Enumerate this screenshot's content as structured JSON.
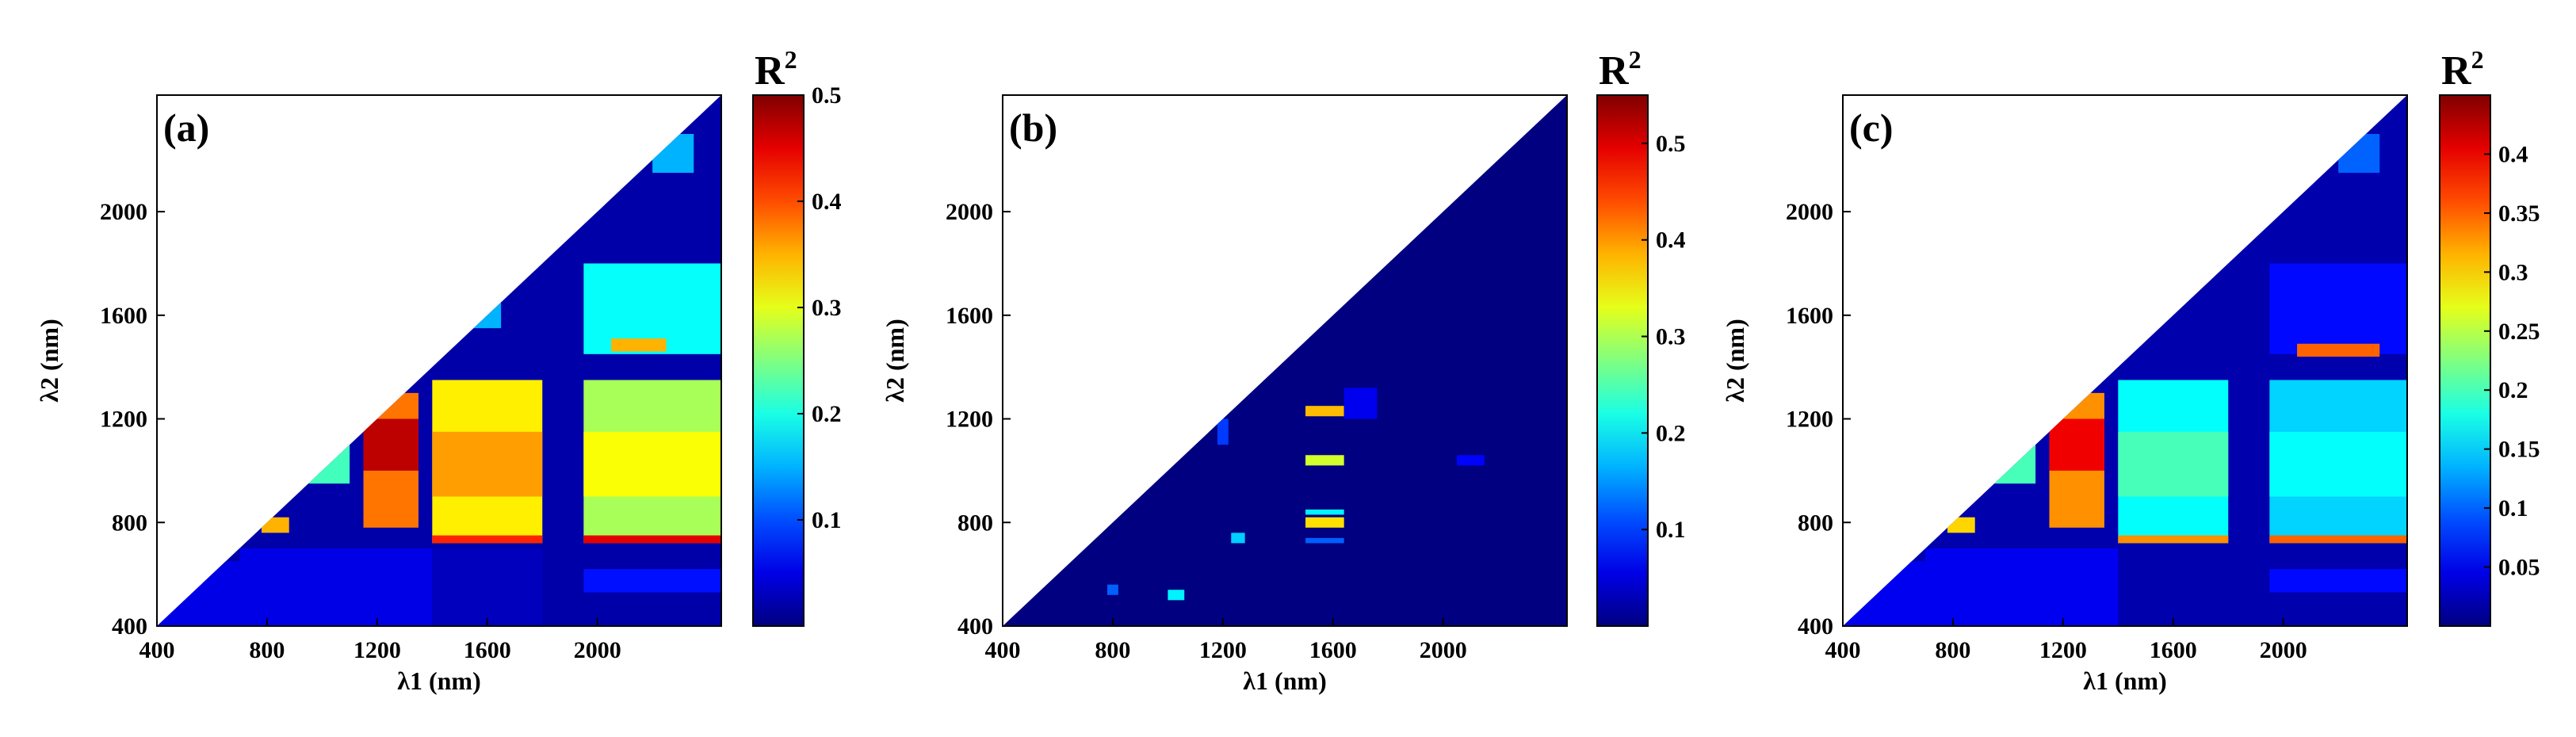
{
  "figure": {
    "description_free": true
  },
  "chart_data": [
    {
      "type": "heatmap",
      "panel_label": "(a)",
      "xlabel": "λ1 (nm)",
      "ylabel": "λ2 (nm)",
      "xlim": [
        400,
        2450
      ],
      "ylim": [
        400,
        2450
      ],
      "x_ticks": [
        400,
        800,
        1200,
        1600,
        2000
      ],
      "y_ticks": [
        400,
        800,
        1200,
        1600,
        2000
      ],
      "colorbar": {
        "title": "R",
        "title_sup": "2",
        "min": 0,
        "max": 0.5,
        "ticks": [
          0.1,
          0.2,
          0.3,
          0.4,
          0.5
        ]
      },
      "background_value": 0.02,
      "regions": [
        {
          "x": [
            400,
            700
          ],
          "y": [
            400,
            650
          ],
          "value": 0.05
        },
        {
          "x": [
            700,
            1400
          ],
          "y": [
            400,
            700
          ],
          "value": 0.05
        },
        {
          "x": [
            1400,
            1800
          ],
          "y": [
            400,
            700
          ],
          "value": 0.03
        },
        {
          "x": [
            1950,
            2450
          ],
          "y": [
            530,
            620
          ],
          "value": 0.07
        },
        {
          "x": [
            1400,
            1800
          ],
          "y": [
            720,
            1350
          ],
          "value": 0.32
        },
        {
          "x": [
            1400,
            1800
          ],
          "y": [
            900,
            1150
          ],
          "value": 0.36
        },
        {
          "x": [
            1400,
            1800
          ],
          "y": [
            720,
            750
          ],
          "value": 0.42
        },
        {
          "x": [
            1950,
            2450
          ],
          "y": [
            720,
            1350
          ],
          "value": 0.27
        },
        {
          "x": [
            1950,
            2450
          ],
          "y": [
            900,
            1150
          ],
          "value": 0.31
        },
        {
          "x": [
            1950,
            2450
          ],
          "y": [
            720,
            750
          ],
          "value": 0.45
        },
        {
          "x": [
            1150,
            1350
          ],
          "y": [
            780,
            1300
          ],
          "value": 0.38
        },
        {
          "x": [
            1150,
            1350
          ],
          "y": [
            1000,
            1200
          ],
          "value": 0.47
        },
        {
          "x": [
            1950,
            2450
          ],
          "y": [
            1450,
            1800
          ],
          "value": 0.19
        },
        {
          "x": [
            2050,
            2250
          ],
          "y": [
            1460,
            1510
          ],
          "value": 0.35
        },
        {
          "x": [
            1500,
            1650
          ],
          "y": [
            1550,
            1700
          ],
          "value": 0.15
        },
        {
          "x": [
            950,
            1100
          ],
          "y": [
            950,
            1100
          ],
          "value": 0.22
        },
        {
          "x": [
            780,
            880
          ],
          "y": [
            760,
            820
          ],
          "value": 0.35
        },
        {
          "x": [
            2200,
            2350
          ],
          "y": [
            2150,
            2300
          ],
          "value": 0.15
        }
      ]
    },
    {
      "type": "heatmap",
      "panel_label": "(b)",
      "xlabel": "λ1 (nm)",
      "ylabel": "λ2 (nm)",
      "xlim": [
        400,
        2450
      ],
      "ylim": [
        400,
        2450
      ],
      "x_ticks": [
        400,
        800,
        1200,
        1600,
        2000
      ],
      "y_ticks": [
        400,
        800,
        1200,
        1600,
        2000
      ],
      "colorbar": {
        "title": "R",
        "title_sup": "2",
        "min": 0,
        "max": 0.55,
        "ticks": [
          0.1,
          0.2,
          0.3,
          0.4,
          0.5
        ]
      },
      "background_value": 0.0,
      "regions": [
        {
          "x": [
            1500,
            1640
          ],
          "y": [
            1210,
            1250
          ],
          "value": 0.38
        },
        {
          "x": [
            1500,
            1640
          ],
          "y": [
            1020,
            1060
          ],
          "value": 0.32
        },
        {
          "x": [
            1500,
            1640
          ],
          "y": [
            780,
            820
          ],
          "value": 0.36
        },
        {
          "x": [
            1500,
            1640
          ],
          "y": [
            830,
            850
          ],
          "value": 0.2
        },
        {
          "x": [
            1500,
            1640
          ],
          "y": [
            720,
            740
          ],
          "value": 0.12
        },
        {
          "x": [
            1000,
            1060
          ],
          "y": [
            500,
            540
          ],
          "value": 0.2
        },
        {
          "x": [
            1230,
            1280
          ],
          "y": [
            720,
            760
          ],
          "value": 0.18
        },
        {
          "x": [
            1180,
            1220
          ],
          "y": [
            1100,
            1200
          ],
          "value": 0.1
        },
        {
          "x": [
            780,
            820
          ],
          "y": [
            520,
            560
          ],
          "value": 0.12
        },
        {
          "x": [
            1640,
            1760
          ],
          "y": [
            1200,
            1320
          ],
          "value": 0.06
        },
        {
          "x": [
            2050,
            2150
          ],
          "y": [
            1020,
            1060
          ],
          "value": 0.07
        }
      ]
    },
    {
      "type": "heatmap",
      "panel_label": "(c)",
      "xlabel": "λ1 (nm)",
      "ylabel": "λ2 (nm)",
      "xlim": [
        400,
        2450
      ],
      "ylim": [
        400,
        2450
      ],
      "x_ticks": [
        400,
        800,
        1200,
        1600,
        2000
      ],
      "y_ticks": [
        400,
        800,
        1200,
        1600,
        2000
      ],
      "colorbar": {
        "title": "R",
        "title_sup": "2",
        "min": 0,
        "max": 0.45,
        "ticks": [
          0.05,
          0.1,
          0.15,
          0.2,
          0.25,
          0.3,
          0.35,
          0.4
        ]
      },
      "background_value": 0.02,
      "regions": [
        {
          "x": [
            400,
            700
          ],
          "y": [
            400,
            650
          ],
          "value": 0.05
        },
        {
          "x": [
            700,
            1400
          ],
          "y": [
            400,
            700
          ],
          "value": 0.05
        },
        {
          "x": [
            1950,
            2450
          ],
          "y": [
            530,
            620
          ],
          "value": 0.06
        },
        {
          "x": [
            1400,
            1800
          ],
          "y": [
            720,
            1350
          ],
          "value": 0.17
        },
        {
          "x": [
            1400,
            1800
          ],
          "y": [
            900,
            1150
          ],
          "value": 0.2
        },
        {
          "x": [
            1400,
            1800
          ],
          "y": [
            720,
            750
          ],
          "value": 0.33
        },
        {
          "x": [
            1950,
            2450
          ],
          "y": [
            720,
            1350
          ],
          "value": 0.15
        },
        {
          "x": [
            1950,
            2450
          ],
          "y": [
            900,
            1150
          ],
          "value": 0.17
        },
        {
          "x": [
            1950,
            2450
          ],
          "y": [
            720,
            750
          ],
          "value": 0.35
        },
        {
          "x": [
            1150,
            1350
          ],
          "y": [
            780,
            1300
          ],
          "value": 0.33
        },
        {
          "x": [
            1150,
            1350
          ],
          "y": [
            1000,
            1200
          ],
          "value": 0.4
        },
        {
          "x": [
            1950,
            2450
          ],
          "y": [
            1450,
            1800
          ],
          "value": 0.06
        },
        {
          "x": [
            2050,
            2350
          ],
          "y": [
            1440,
            1490
          ],
          "value": 0.35
        },
        {
          "x": [
            950,
            1100
          ],
          "y": [
            950,
            1100
          ],
          "value": 0.2
        },
        {
          "x": [
            780,
            880
          ],
          "y": [
            760,
            820
          ],
          "value": 0.3
        },
        {
          "x": [
            2200,
            2350
          ],
          "y": [
            2150,
            2300
          ],
          "value": 0.1
        }
      ]
    }
  ]
}
